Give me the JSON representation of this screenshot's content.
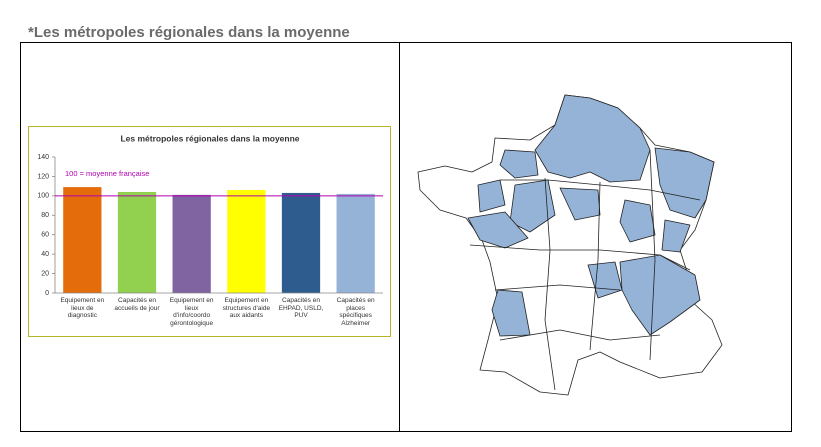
{
  "heading": "*Les métropoles régionales dans la moyenne",
  "chart_data": {
    "type": "bar",
    "title": "Les métropoles régionales dans la moyenne",
    "categories": [
      "Equipement en lieux de diagnostic",
      "Capacités en accueils de jour",
      "Equipement en lieux d'info/coordo gérontologique",
      "Equipement en structures d'aide aux aidants",
      "Capacités en EHPAD, USLD, PUV",
      "Capacités en places spécifiques Alzheimer"
    ],
    "values": [
      109,
      104,
      101,
      106,
      103,
      102
    ],
    "colors": [
      "#e46c0a",
      "#92d050",
      "#8064a2",
      "#ffff00",
      "#2f5c8f",
      "#95b3d7"
    ],
    "ylim": [
      0,
      140
    ],
    "yticks": [
      0,
      20,
      40,
      60,
      80,
      100,
      120,
      140
    ],
    "reference_line": {
      "value": 100,
      "label": "100 = moyenne française",
      "color": "#b000b0"
    }
  }
}
